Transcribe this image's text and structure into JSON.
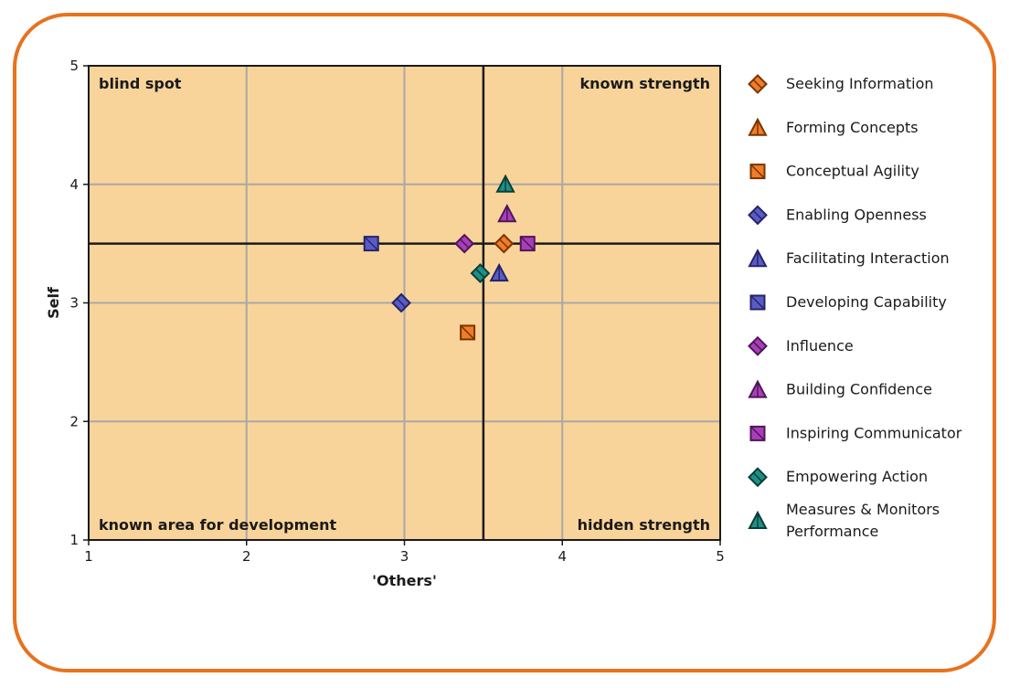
{
  "chart_data": {
    "type": "scatter",
    "xlabel": "'Others'",
    "ylabel": "Self",
    "xlim": [
      1,
      5
    ],
    "ylim": [
      1,
      5
    ],
    "xticks": [
      "1",
      "2",
      "3",
      "4",
      "5"
    ],
    "yticks": [
      "1",
      "2",
      "3",
      "4",
      "5"
    ],
    "grid": true,
    "divider": {
      "x": 3.5,
      "y": 3.5
    },
    "quadrant_labels": {
      "top_left": "blind spot",
      "top_right": "known strength",
      "bottom_left": "known area for development",
      "bottom_right": "hidden strength"
    },
    "plot_background": "#f9d49a",
    "legend_position": "right",
    "series": [
      {
        "name": "Seeking Information",
        "marker": "diamond",
        "fill": "#f07d28",
        "stroke": "#7a3300",
        "x": 3.63,
        "y": 3.5
      },
      {
        "name": "Forming Concepts",
        "marker": "triangle",
        "fill": "#f07d28",
        "stroke": "#7a3300",
        "x": null,
        "y": null
      },
      {
        "name": "Conceptual Agility",
        "marker": "square",
        "fill": "#f07d28",
        "stroke": "#7a3300",
        "x": 3.4,
        "y": 2.75
      },
      {
        "name": "Enabling Openness",
        "marker": "diamond",
        "fill": "#5b5bc4",
        "stroke": "#24246a",
        "x": 2.98,
        "y": 3.0
      },
      {
        "name": "Facilitating Interaction",
        "marker": "triangle",
        "fill": "#5b5bc4",
        "stroke": "#24246a",
        "x": 3.6,
        "y": 3.25
      },
      {
        "name": "Developing Capability",
        "marker": "square",
        "fill": "#5b5bc4",
        "stroke": "#24246a",
        "x": 2.79,
        "y": 3.5
      },
      {
        "name": "Influence",
        "marker": "diamond",
        "fill": "#a93fb8",
        "stroke": "#4e1658",
        "x": 3.38,
        "y": 3.5
      },
      {
        "name": "Building Confidence",
        "marker": "triangle",
        "fill": "#a93fb8",
        "stroke": "#4e1658",
        "x": 3.65,
        "y": 3.75
      },
      {
        "name": "Inspiring Communicator",
        "marker": "square",
        "fill": "#a93fb8",
        "stroke": "#4e1658",
        "x": 3.78,
        "y": 3.5
      },
      {
        "name": "Empowering Action",
        "marker": "diamond",
        "fill": "#1e8f86",
        "stroke": "#0a3d39",
        "x": 3.48,
        "y": 3.25
      },
      {
        "name": "Measures & Monitors Performance",
        "label_lines": [
          "Measures & Monitors",
          "Performance"
        ],
        "marker": "triangle",
        "fill": "#1e8f86",
        "stroke": "#0a3d39",
        "x": 3.64,
        "y": 4.0
      }
    ]
  }
}
